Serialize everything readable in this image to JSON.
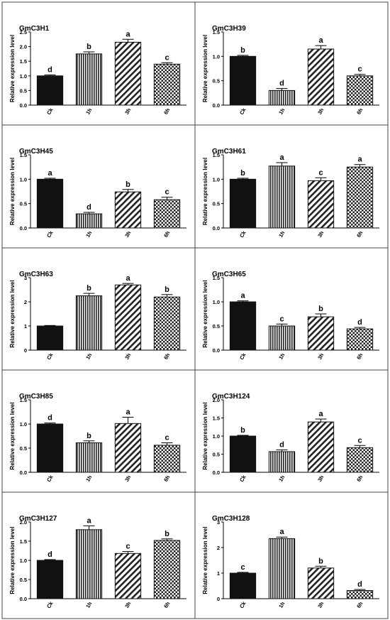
{
  "colors": {
    "border": "#444444",
    "bar_fill_ck": "#111111",
    "bar_stroke": "#111111",
    "pattern_ink": "#222222",
    "background": "#ffffff"
  },
  "chart_data": [
    {
      "type": "bar",
      "title": "GmC3H1",
      "ylabel": "Relative expression level",
      "categories": [
        "Ck",
        "1h",
        "3h",
        "6h"
      ],
      "values": [
        1.0,
        1.75,
        2.15,
        1.4
      ],
      "errors": [
        0.03,
        0.07,
        0.1,
        0.05
      ],
      "letters": [
        "d",
        "b",
        "a",
        "c"
      ],
      "ylim": [
        0,
        2.5
      ],
      "ticks": [
        "0.0",
        "0.5",
        "1.0",
        "1.5",
        "2.0",
        "2.5"
      ],
      "grid": false
    },
    {
      "type": "bar",
      "title": "GmC3H39",
      "ylabel": "Relative expression level",
      "categories": [
        "Ck",
        "1h",
        "3h",
        "6h"
      ],
      "values": [
        1.0,
        0.3,
        1.15,
        0.6
      ],
      "errors": [
        0.02,
        0.04,
        0.07,
        0.03
      ],
      "letters": [
        "b",
        "d",
        "a",
        "c"
      ],
      "ylim": [
        0,
        1.5
      ],
      "ticks": [
        "0.0",
        "0.5",
        "1.0",
        "1.5"
      ],
      "grid": false
    },
    {
      "type": "bar",
      "title": "GmC3H45",
      "ylabel": "Relative expression level",
      "categories": [
        "Ck",
        "1h",
        "3h",
        "6h"
      ],
      "values": [
        1.0,
        0.29,
        0.74,
        0.58
      ],
      "errors": [
        0.02,
        0.03,
        0.05,
        0.05
      ],
      "letters": [
        "a",
        "d",
        "b",
        "c"
      ],
      "ylim": [
        0,
        1.5
      ],
      "ticks": [
        "0.0",
        "0.5",
        "1.0",
        "1.5"
      ],
      "grid": false
    },
    {
      "type": "bar",
      "title": "GmC3H61",
      "ylabel": "Relative expression level",
      "categories": [
        "Ck",
        "1h",
        "3h",
        "6h"
      ],
      "values": [
        1.0,
        1.27,
        0.97,
        1.25
      ],
      "errors": [
        0.02,
        0.07,
        0.06,
        0.05
      ],
      "letters": [
        "b",
        "a",
        "c",
        "a"
      ],
      "ylim": [
        0,
        1.5
      ],
      "ticks": [
        "0.0",
        "0.5",
        "1.0",
        "1.5"
      ],
      "grid": false
    },
    {
      "type": "bar",
      "title": "GmC3H63",
      "ylabel": "Relative expression level",
      "categories": [
        "Ck",
        "1h",
        "3h",
        "6h"
      ],
      "values": [
        1.0,
        2.25,
        2.7,
        2.2
      ],
      "errors": [
        0.02,
        0.1,
        0.06,
        0.1
      ],
      "letters": [
        "",
        "b",
        "a",
        "b"
      ],
      "ylim": [
        0,
        3
      ],
      "ticks": [
        "0",
        "1",
        "2",
        "3"
      ],
      "grid": false
    },
    {
      "type": "bar",
      "title": "GmC3H65",
      "ylabel": "Relative expression level",
      "categories": [
        "Ck",
        "1h",
        "3h",
        "6h"
      ],
      "values": [
        1.0,
        0.5,
        0.69,
        0.44
      ],
      "errors": [
        0.02,
        0.04,
        0.06,
        0.03
      ],
      "letters": [
        "a",
        "c",
        "b",
        "d"
      ],
      "ylim": [
        0,
        1.5
      ],
      "ticks": [
        "0.0",
        "0.5",
        "1.0",
        "1.5"
      ],
      "grid": false
    },
    {
      "type": "bar",
      "title": "GmC3H85",
      "ylabel": "Relative expression level",
      "categories": [
        "Ck",
        "1h",
        "3h",
        "6h"
      ],
      "values": [
        1.0,
        0.61,
        1.01,
        0.56
      ],
      "errors": [
        0.02,
        0.04,
        0.13,
        0.05
      ],
      "letters": [
        "d",
        "b",
        "a",
        "c"
      ],
      "ylim": [
        0,
        1.5
      ],
      "ticks": [
        "0.0",
        "0.5",
        "1.0",
        "1.5"
      ],
      "grid": false
    },
    {
      "type": "bar",
      "title": "GmC3H124",
      "ylabel": "Relative expression level",
      "categories": [
        "Ck",
        "1h",
        "3h",
        "6h"
      ],
      "values": [
        1.0,
        0.57,
        1.39,
        0.68
      ],
      "errors": [
        0.02,
        0.05,
        0.08,
        0.06
      ],
      "letters": [
        "b",
        "d",
        "a",
        "c"
      ],
      "ylim": [
        0,
        2.0
      ],
      "ticks": [
        "0.0",
        "0.5",
        "1.0",
        "1.5",
        "2.0"
      ],
      "grid": false
    },
    {
      "type": "bar",
      "title": "GmC3H127",
      "ylabel": "Relative expression level",
      "categories": [
        "Ck",
        "1h",
        "3h",
        "6h"
      ],
      "values": [
        1.0,
        1.8,
        1.18,
        1.52
      ],
      "errors": [
        0.02,
        0.1,
        0.05,
        0.04
      ],
      "letters": [
        "d",
        "a",
        "c",
        "b"
      ],
      "ylim": [
        0,
        2.0
      ],
      "ticks": [
        "0.0",
        "0.5",
        "1.0",
        "1.5",
        "2.0"
      ],
      "grid": false
    },
    {
      "type": "bar",
      "title": "GmC3H128",
      "ylabel": "Relative expression level",
      "categories": [
        "Ck",
        "1h",
        "3h",
        "6h"
      ],
      "values": [
        1.0,
        2.35,
        1.2,
        0.32
      ],
      "errors": [
        0.03,
        0.06,
        0.07,
        0.04
      ],
      "letters": [
        "c",
        "a",
        "b",
        "d"
      ],
      "ylim": [
        0,
        3
      ],
      "ticks": [
        "0",
        "1",
        "2",
        "3"
      ],
      "grid": false
    }
  ]
}
